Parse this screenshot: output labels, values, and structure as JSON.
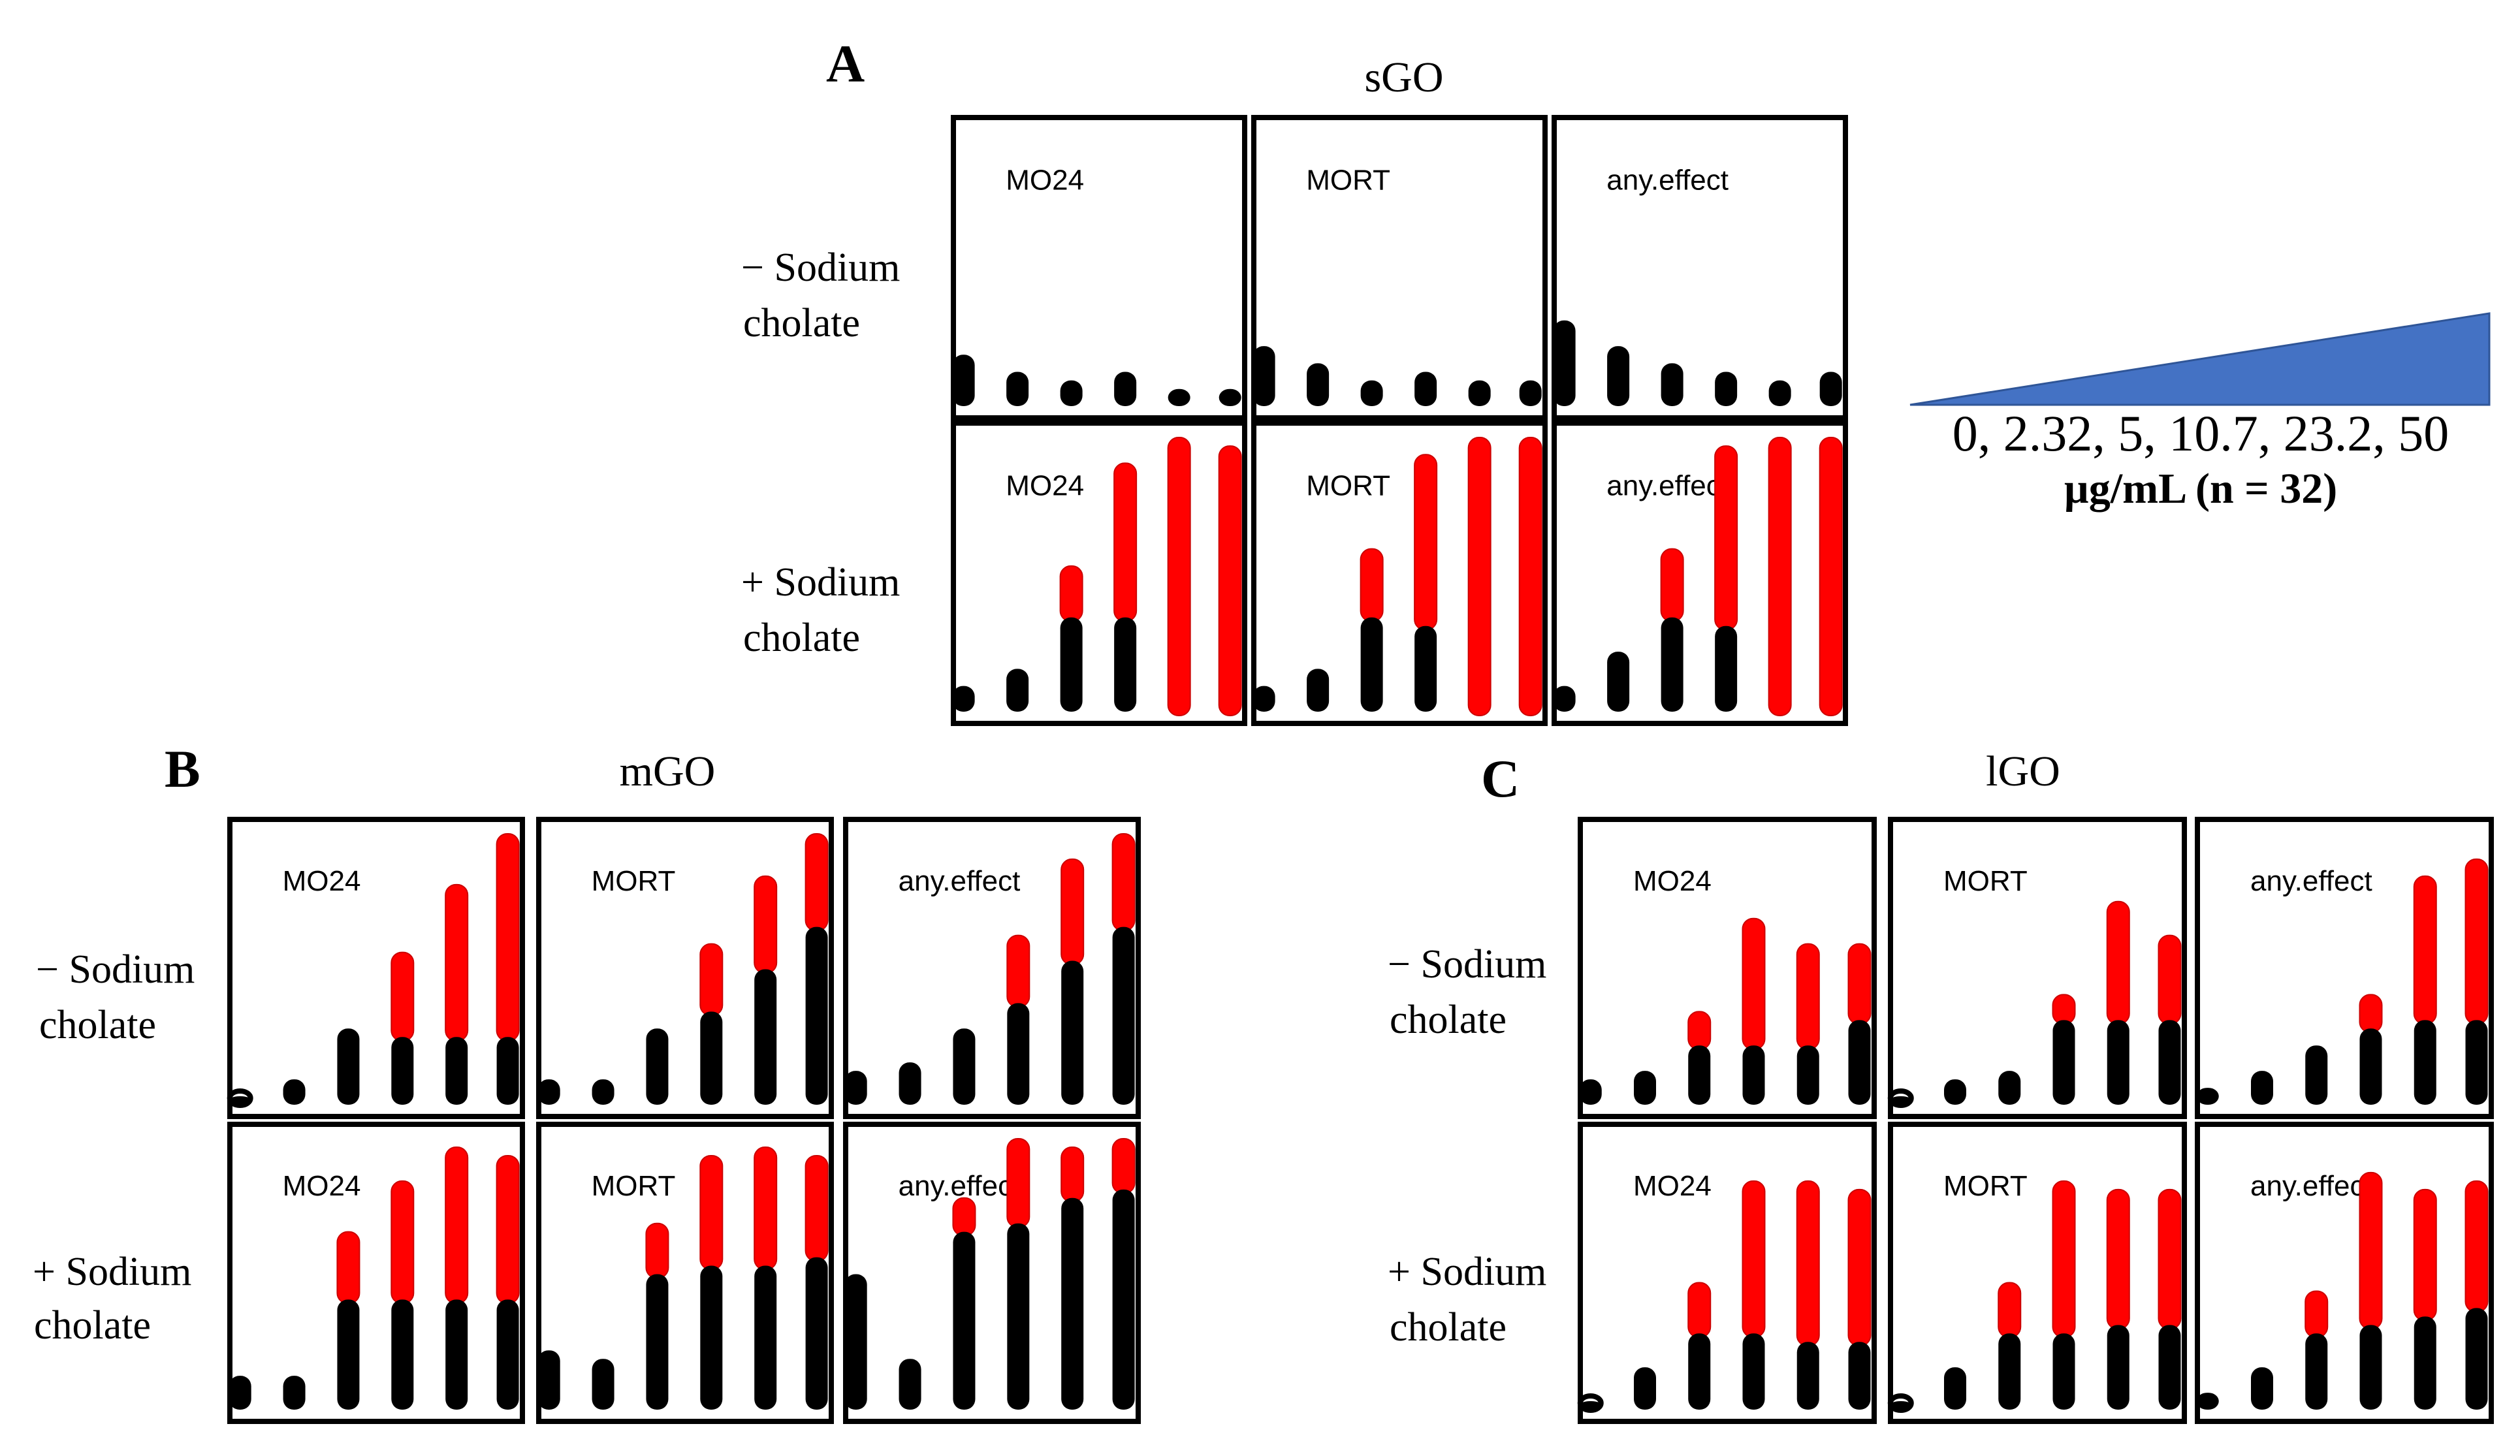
{
  "colors": {
    "responder": "#ff0000",
    "nonresponder": "#000000",
    "wedge": "#4472c4",
    "frame": "#000000"
  },
  "legend": {
    "concentrations": "0, 2.32, 5, 10.7, 23.2, 50",
    "unit": "µg/mL (n = 32)"
  },
  "row_labels": {
    "minus": [
      "− Sodium",
      "cholate"
    ],
    "plus": [
      "+ Sodium",
      "cholate"
    ]
  },
  "chart_data": [
    {
      "type": "bar",
      "panel": "A",
      "title": "sGO",
      "x": [
        0,
        2.32,
        5,
        10.7,
        23.2,
        50
      ],
      "n": 32,
      "ylim": [
        0,
        32
      ],
      "rows": [
        {
          "condition": "− Sodium cholate",
          "cells": [
            {
              "endpoint": "MO24",
              "total": [
                6,
                4,
                3,
                4,
                2,
                2
              ],
              "affected": [
                0,
                0,
                0,
                0,
                0,
                0
              ]
            },
            {
              "endpoint": "MORT",
              "total": [
                7,
                5,
                3,
                4,
                3,
                3
              ],
              "affected": [
                0,
                0,
                0,
                0,
                0,
                0
              ]
            },
            {
              "endpoint": "any.effect",
              "total": [
                10,
                7,
                5,
                4,
                3,
                4
              ],
              "affected": [
                0,
                0,
                0,
                0,
                0,
                0
              ]
            }
          ]
        },
        {
          "condition": "+ Sodium cholate",
          "cells": [
            {
              "endpoint": "MO24",
              "total": [
                3,
                5,
                17,
                29,
                32,
                31
              ],
              "affected": [
                0,
                0,
                6,
                18,
                32,
                31
              ]
            },
            {
              "endpoint": "MORT",
              "total": [
                3,
                5,
                19,
                30,
                32,
                32
              ],
              "affected": [
                0,
                0,
                8,
                20,
                32,
                32
              ]
            },
            {
              "endpoint": "any.effect",
              "total": [
                3,
                7,
                19,
                31,
                32,
                32
              ],
              "affected": [
                0,
                0,
                8,
                21,
                32,
                32
              ]
            }
          ]
        }
      ]
    },
    {
      "type": "bar",
      "panel": "B",
      "title": "mGO",
      "x": [
        0,
        2.32,
        5,
        10.7,
        23.2,
        50
      ],
      "n": 32,
      "ylim": [
        0,
        32
      ],
      "rows": [
        {
          "condition": "− Sodium cholate",
          "cells": [
            {
              "endpoint": "MO24",
              "total": [
                1,
                3,
                9,
                18,
                26,
                32
              ],
              "affected": [
                0,
                0,
                0,
                10,
                18,
                24
              ]
            },
            {
              "endpoint": "MORT",
              "total": [
                3,
                3,
                9,
                19,
                27,
                32
              ],
              "affected": [
                0,
                0,
                0,
                8,
                11,
                11
              ]
            },
            {
              "endpoint": "any.effect",
              "total": [
                4,
                5,
                9,
                20,
                29,
                32
              ],
              "affected": [
                0,
                0,
                0,
                8,
                12,
                11
              ]
            }
          ]
        },
        {
          "condition": "+ Sodium cholate",
          "cells": [
            {
              "endpoint": "MO24",
              "total": [
                4,
                4,
                21,
                27,
                31,
                30
              ],
              "affected": [
                0,
                0,
                8,
                14,
                18,
                17
              ]
            },
            {
              "endpoint": "MORT",
              "total": [
                7,
                6,
                22,
                30,
                31,
                30
              ],
              "affected": [
                0,
                0,
                6,
                13,
                14,
                12
              ]
            },
            {
              "endpoint": "any.effect",
              "total": [
                16,
                6,
                25,
                32,
                31,
                32
              ],
              "affected": [
                0,
                0,
                4,
                10,
                6,
                6
              ]
            }
          ]
        }
      ]
    },
    {
      "type": "bar",
      "panel": "C",
      "title": "lGO",
      "x": [
        0,
        2.32,
        5,
        10.7,
        23.2,
        50
      ],
      "n": 32,
      "ylim": [
        0,
        32
      ],
      "rows": [
        {
          "condition": "− Sodium cholate",
          "cells": [
            {
              "endpoint": "MO24",
              "total": [
                3,
                4,
                11,
                22,
                19,
                19
              ],
              "affected": [
                0,
                0,
                4,
                15,
                12,
                9
              ]
            },
            {
              "endpoint": "MORT",
              "total": [
                1,
                3,
                4,
                13,
                24,
                20
              ],
              "affected": [
                0,
                0,
                0,
                3,
                14,
                10
              ]
            },
            {
              "endpoint": "any.effect",
              "total": [
                2,
                4,
                7,
                13,
                27,
                29
              ],
              "affected": [
                0,
                0,
                0,
                4,
                17,
                19
              ]
            }
          ]
        },
        {
          "condition": "+ Sodium cholate",
          "cells": [
            {
              "endpoint": "MO24",
              "total": [
                1,
                5,
                15,
                27,
                27,
                26
              ],
              "affected": [
                0,
                0,
                6,
                18,
                19,
                18
              ]
            },
            {
              "endpoint": "MORT",
              "total": [
                1,
                5,
                15,
                27,
                26,
                26
              ],
              "affected": [
                0,
                0,
                6,
                18,
                16,
                16
              ]
            },
            {
              "endpoint": "any.effect",
              "total": [
                2,
                5,
                14,
                28,
                26,
                27
              ],
              "affected": [
                0,
                0,
                5,
                18,
                15,
                15
              ]
            }
          ]
        }
      ]
    }
  ]
}
